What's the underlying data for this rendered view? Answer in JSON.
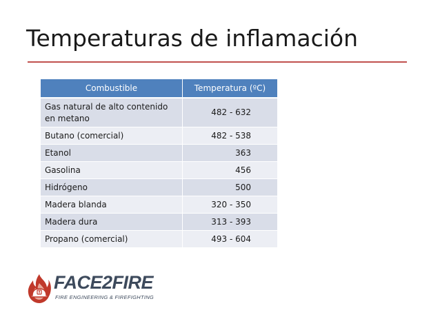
{
  "slide": {
    "title": "Temperaturas de inflamación"
  },
  "table": {
    "headers": [
      "Combustible",
      "Temperatura (ºC)"
    ],
    "rows": [
      {
        "fuel": "Gas natural de alto contenido en metano",
        "temperature": "482 - 632"
      },
      {
        "fuel": "Butano (comercial)",
        "temperature": "482 - 538"
      },
      {
        "fuel": "Etanol",
        "temperature": "363"
      },
      {
        "fuel": "Gasolina",
        "temperature": "456"
      },
      {
        "fuel": "Hidrógeno",
        "temperature": "500"
      },
      {
        "fuel": "Madera blanda",
        "temperature": "320 - 350"
      },
      {
        "fuel": "Madera dura",
        "temperature": "313 - 393"
      },
      {
        "fuel": "Propano (comercial)",
        "temperature": "493 - 604"
      }
    ]
  },
  "logo": {
    "name": "FACE2FIRE",
    "tagline": "FIRE ENGINEERING & FIREFIGHTING"
  },
  "colors": {
    "accent_rule": "#c0504d",
    "table_header": "#4f81bd",
    "row_odd": "#d9dde8",
    "row_even": "#eceef4",
    "logo_text": "#3d4a5c",
    "logo_flame": "#c0392b"
  },
  "icons": {
    "logo_mark": "flame-helmet-icon"
  }
}
